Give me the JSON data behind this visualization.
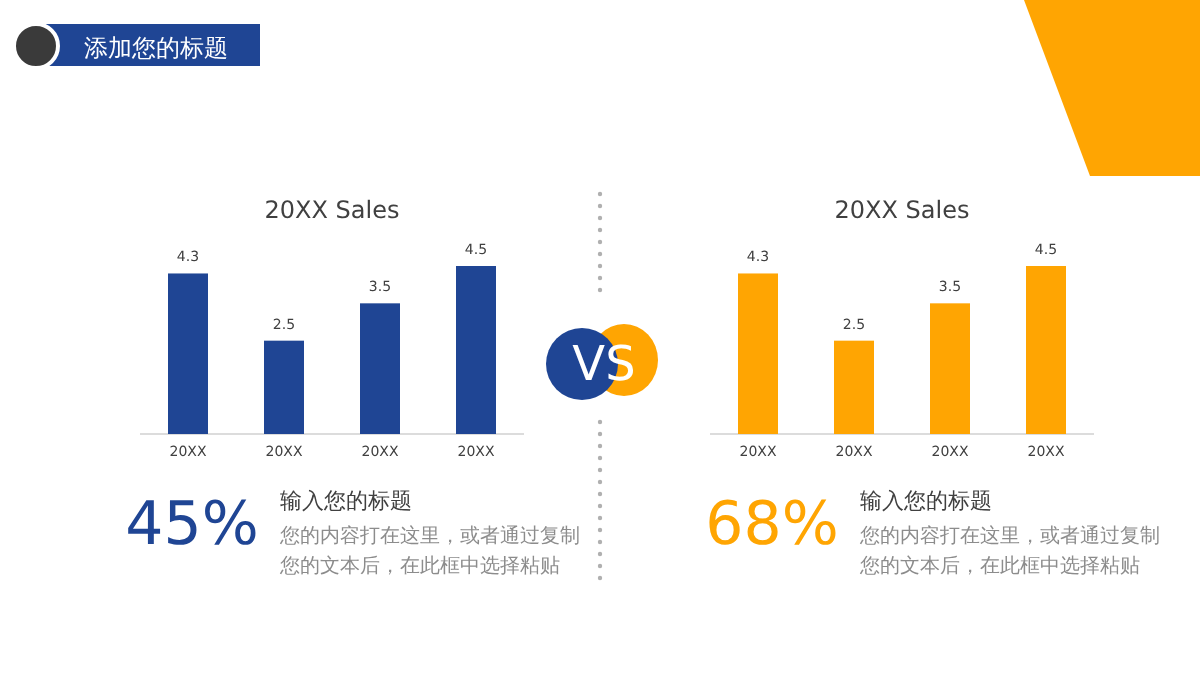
{
  "chart_data": [
    {
      "type": "other",
      "title": "添加您的标题",
      "annotations": [
        "VS"
      ]
    },
    {
      "type": "bar",
      "title": "20XX Sales",
      "categories": [
        "20XX",
        "20XX",
        "20XX",
        "20XX"
      ],
      "values": [
        4.3,
        2.5,
        3.5,
        4.5
      ],
      "color": "#1f4594",
      "data_labels": true,
      "annotations": [
        "45%",
        "输入您的标题",
        "您的内容打在这里，或者通过复制您的文本后，在此框中选择粘贴"
      ]
    },
    {
      "type": "bar",
      "title": "20XX Sales",
      "categories": [
        "20XX",
        "20XX",
        "20XX",
        "20XX"
      ],
      "values": [
        4.3,
        2.5,
        3.5,
        4.5
      ],
      "color": "#ffa502",
      "data_labels": true,
      "annotations": [
        "68%",
        "输入您的标题",
        "您的内容打在这里，或者通过复制您的文本后，在此框中选择粘贴"
      ]
    }
  ]
}
